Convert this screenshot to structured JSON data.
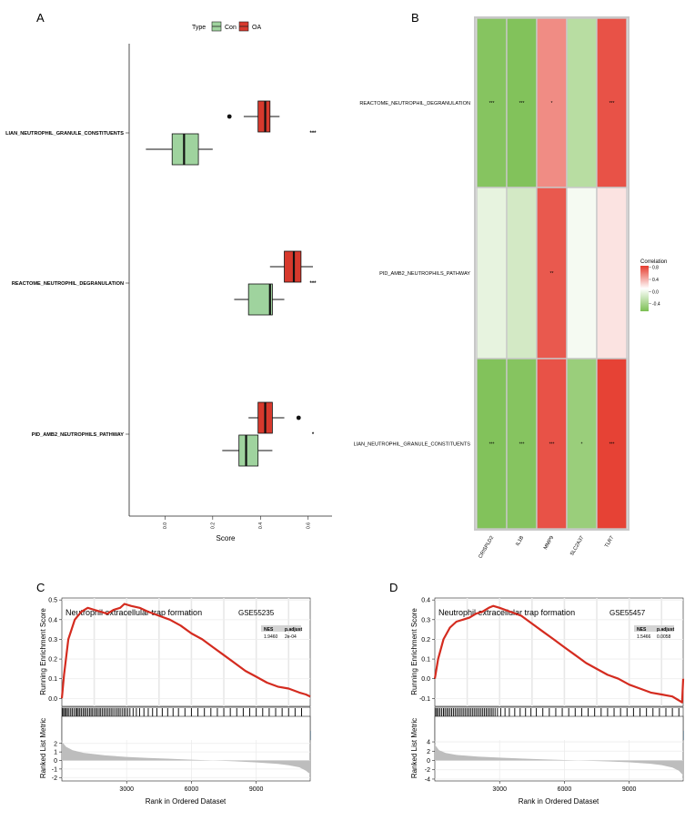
{
  "panels": {
    "a": "A",
    "b": "B",
    "c": "C",
    "d": "D"
  },
  "colors": {
    "con": "#9fd39e",
    "oa": "#d7392d",
    "gsea_line": "#d42b1f",
    "cell_border": "#c8c8c8"
  },
  "chart_data": [
    {
      "id": "A",
      "type": "boxplot",
      "orientation": "horizontal",
      "legend": {
        "title": "Type",
        "entries": [
          "Con",
          "OA"
        ],
        "placement": "top"
      },
      "xlabel": "Score",
      "xlim": [
        -0.15,
        0.7
      ],
      "xticks": [
        "0.0",
        "0.2",
        "0.4",
        "0.6"
      ],
      "xtick_values": [
        0.0,
        0.2,
        0.4,
        0.6
      ],
      "categories": [
        "LIAN_NEUTROPHIL_GRANULE_CONSTITUENTS",
        "REACTOME_NEUTROPHIL_DEGRANULATION",
        "PID_AMB2_NEUTROPHILS_PATHWAY"
      ],
      "significance": [
        "***",
        "***",
        "*"
      ],
      "series": [
        {
          "name": "Con",
          "boxes": [
            {
              "min": -0.08,
              "q1": 0.03,
              "median": 0.08,
              "q3": 0.14,
              "max": 0.2,
              "outliers": []
            },
            {
              "min": 0.29,
              "q1": 0.35,
              "median": 0.44,
              "q3": 0.45,
              "max": 0.5,
              "outliers": []
            },
            {
              "min": 0.24,
              "q1": 0.31,
              "median": 0.34,
              "q3": 0.39,
              "max": 0.45,
              "outliers": []
            }
          ]
        },
        {
          "name": "OA",
          "boxes": [
            {
              "min": 0.33,
              "q1": 0.39,
              "median": 0.42,
              "q3": 0.44,
              "max": 0.48,
              "outliers": [
                0.27
              ]
            },
            {
              "min": 0.44,
              "q1": 0.5,
              "median": 0.54,
              "q3": 0.57,
              "max": 0.62,
              "outliers": []
            },
            {
              "min": 0.35,
              "q1": 0.39,
              "median": 0.42,
              "q3": 0.45,
              "max": 0.5,
              "outliers": [
                0.56
              ]
            }
          ]
        }
      ]
    },
    {
      "id": "B",
      "type": "heatmap",
      "rows": [
        "REACTOME_NEUTROPHIL_DEGRANULATION",
        "PID_AMB2_NEUTROPHILS_PATHWAY",
        "LIAN_NEUTROPHIL_GRANULE_CONSTITUENTS"
      ],
      "columns": [
        "CRISPLD2",
        "IL1B",
        "MMP9",
        "SLC2A37",
        "TLR7"
      ],
      "values": [
        [
          -0.6,
          -0.62,
          0.5,
          -0.35,
          0.75
        ],
        [
          -0.12,
          -0.22,
          0.72,
          -0.05,
          0.12
        ],
        [
          -0.62,
          -0.6,
          0.75,
          -0.5,
          0.82
        ]
      ],
      "labels": [
        [
          "***",
          "***",
          "*",
          "",
          "***"
        ],
        [
          "",
          "",
          "**",
          "",
          ""
        ],
        [
          "***",
          "***",
          "***",
          "*",
          "***"
        ]
      ],
      "legend": {
        "title": "Correlation",
        "ticks": [
          "0.8",
          "0.4",
          "0.0",
          "-0.4"
        ],
        "tick_values": [
          0.8,
          0.4,
          0.0,
          -0.4
        ],
        "range": [
          -0.65,
          0.85
        ],
        "placement": "right"
      }
    },
    {
      "id": "C",
      "type": "line",
      "title": "Neutrophil extracellular trap formation",
      "dataset": "GSE55235",
      "stats": {
        "headers": [
          "NES",
          "p.adjust"
        ],
        "values": [
          "1.9460",
          "2e-04"
        ]
      },
      "ylabel": "Running Enrichment Score",
      "ylim": [
        -0.04,
        0.51
      ],
      "yticks": [
        "0.0",
        "0.1",
        "0.2",
        "0.3",
        "0.4",
        "0.5"
      ],
      "ytick_values": [
        0.0,
        0.1,
        0.2,
        0.3,
        0.4,
        0.5
      ],
      "xlabel": "Rank in Ordered Dataset",
      "xlim": [
        0,
        11500
      ],
      "xticks": [
        "3000",
        "6000",
        "9000"
      ],
      "xtick_values": [
        3000,
        6000,
        9000
      ],
      "es_x": [
        0,
        100,
        300,
        600,
        900,
        1200,
        1500,
        1800,
        2100,
        2400,
        2700,
        2900,
        3200,
        3600,
        4000,
        4500,
        5000,
        5500,
        6000,
        6500,
        7000,
        7500,
        8000,
        8500,
        9000,
        9500,
        10000,
        10500,
        11000,
        11300,
        11500
      ],
      "es_y": [
        0.0,
        0.12,
        0.3,
        0.4,
        0.44,
        0.46,
        0.45,
        0.44,
        0.43,
        0.45,
        0.46,
        0.48,
        0.47,
        0.46,
        0.44,
        0.42,
        0.4,
        0.37,
        0.33,
        0.3,
        0.26,
        0.22,
        0.18,
        0.14,
        0.11,
        0.08,
        0.06,
        0.05,
        0.03,
        0.02,
        0.01
      ],
      "hits": [
        30,
        80,
        140,
        200,
        260,
        330,
        410,
        480,
        560,
        640,
        700,
        760,
        830,
        900,
        980,
        1050,
        1120,
        1200,
        1280,
        1350,
        1420,
        1500,
        1580,
        1650,
        1730,
        1800,
        1880,
        1960,
        2040,
        2120,
        2200,
        2280,
        2360,
        2450,
        2540,
        2620,
        2700,
        2790,
        2880,
        2960,
        3050,
        3150,
        3300,
        3450,
        3600,
        3800,
        4000,
        4200,
        4400,
        4650,
        4900,
        5150,
        5400,
        5700,
        6000,
        6300,
        6600,
        6900,
        7200,
        7500,
        7800,
        8100,
        8400,
        8700,
        9000,
        9300,
        9600,
        9900,
        10200,
        10500,
        10800,
        11100
      ],
      "metric_ylabel": "Ranked List Metric",
      "metric_ylim": [
        -2.4,
        2.4
      ],
      "metric_yticks": [
        "2",
        "1",
        "0",
        "-1",
        "-2"
      ],
      "metric_ytick_values": [
        2,
        1,
        0,
        -1,
        -2
      ],
      "metric_x": [
        0,
        200,
        500,
        1000,
        2000,
        3000,
        4000,
        5000,
        6000,
        7000,
        8000,
        9000,
        10000,
        10500,
        11000,
        11300,
        11500
      ],
      "metric_y": [
        2.2,
        1.6,
        1.2,
        0.9,
        0.6,
        0.42,
        0.3,
        0.2,
        0.1,
        0.0,
        -0.1,
        -0.22,
        -0.4,
        -0.55,
        -0.8,
        -1.2,
        -1.6
      ]
    },
    {
      "id": "D",
      "type": "line",
      "title": "Neutrophil extracellular trap formation",
      "dataset": "GSE55457",
      "stats": {
        "headers": [
          "NES",
          "p.adjust"
        ],
        "values": [
          "1.5466",
          "0.0058"
        ]
      },
      "ylabel": "Running Enrichment Score",
      "ylim": [
        -0.14,
        0.41
      ],
      "yticks": [
        "0.4",
        "0.3",
        "0.2",
        "0.1",
        "0.0",
        "-0.1"
      ],
      "ytick_values": [
        0.4,
        0.3,
        0.2,
        0.1,
        0.0,
        -0.1
      ],
      "xlabel": "Rank in Ordered Dataset",
      "xlim": [
        0,
        11500
      ],
      "xticks": [
        "3000",
        "6000",
        "9000"
      ],
      "xtick_values": [
        3000,
        6000,
        9000
      ],
      "es_x": [
        0,
        150,
        400,
        700,
        1000,
        1300,
        1600,
        1900,
        2200,
        2500,
        2700,
        3000,
        3500,
        4000,
        4500,
        5000,
        5500,
        6000,
        6500,
        7000,
        7500,
        8000,
        8500,
        9000,
        9500,
        10000,
        10500,
        11000,
        11300,
        11450,
        11500
      ],
      "es_y": [
        0.0,
        0.1,
        0.2,
        0.26,
        0.29,
        0.3,
        0.31,
        0.33,
        0.34,
        0.36,
        0.37,
        0.36,
        0.34,
        0.32,
        0.28,
        0.24,
        0.2,
        0.16,
        0.12,
        0.08,
        0.05,
        0.02,
        0.0,
        -0.03,
        -0.05,
        -0.07,
        -0.08,
        -0.09,
        -0.11,
        -0.12,
        0.0
      ],
      "hits": [
        40,
        100,
        170,
        240,
        320,
        400,
        470,
        550,
        620,
        700,
        780,
        860,
        940,
        1020,
        1100,
        1180,
        1260,
        1340,
        1420,
        1500,
        1580,
        1660,
        1740,
        1820,
        1900,
        1980,
        2060,
        2140,
        2220,
        2300,
        2380,
        2460,
        2540,
        2620,
        2700,
        2790,
        2900,
        3050,
        3250,
        3450,
        3700,
        3950,
        4200,
        4450,
        4700,
        5000,
        5300,
        5600,
        5900,
        6200,
        6500,
        6800,
        7100,
        7400,
        7700,
        8000,
        8300,
        8600,
        8900,
        9200,
        9500,
        9800,
        10100,
        10400,
        10700,
        11000,
        11300
      ],
      "metric_ylabel": "Ranked List Metric",
      "metric_ylim": [
        -4.4,
        4.4
      ],
      "metric_yticks": [
        "4",
        "2",
        "0",
        "-2",
        "-4"
      ],
      "metric_ytick_values": [
        4,
        2,
        0,
        -2,
        -4
      ],
      "metric_x": [
        0,
        200,
        500,
        1000,
        2000,
        3000,
        4000,
        5000,
        6000,
        7000,
        8000,
        9000,
        10000,
        10500,
        11000,
        11300,
        11500
      ],
      "metric_y": [
        3.4,
        2.2,
        1.6,
        1.2,
        0.85,
        0.6,
        0.42,
        0.25,
        0.1,
        -0.05,
        -0.2,
        -0.4,
        -0.7,
        -1.0,
        -1.5,
        -2.2,
        -3.2
      ]
    }
  ]
}
